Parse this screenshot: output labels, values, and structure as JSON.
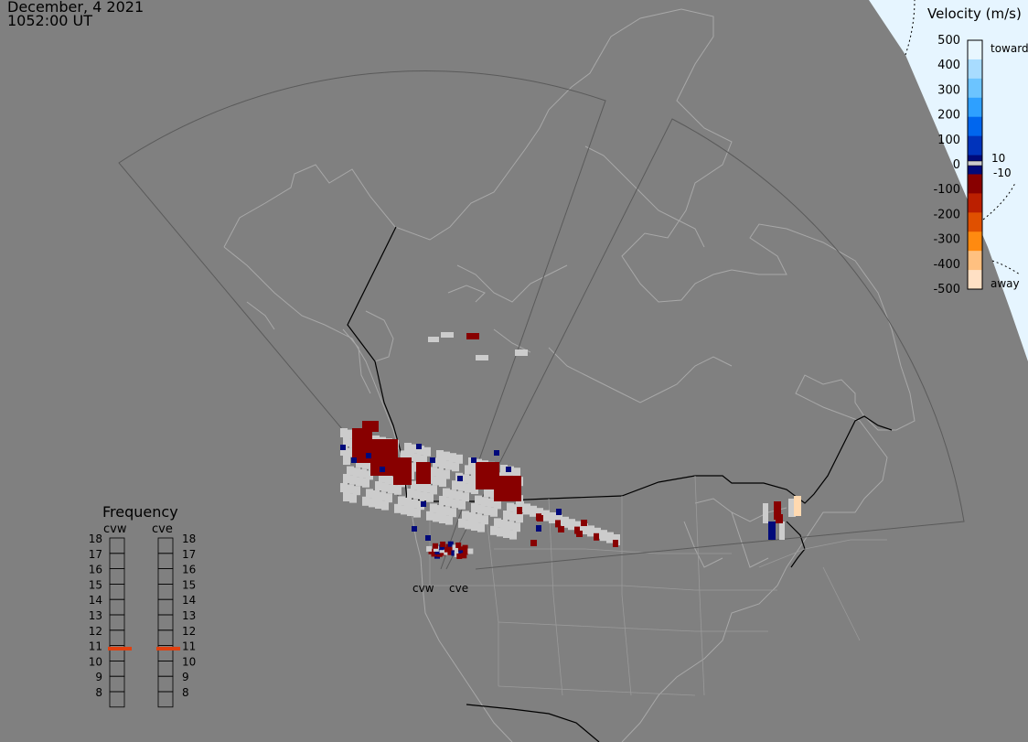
{
  "header": {
    "date": "December, 4 2021",
    "time": "1052:00 UT"
  },
  "colors": {
    "background": "#808080",
    "land_outline": "#a8a8a8",
    "border": "#000000",
    "fov": "#5a5a5a",
    "daylight": "#e6f5ff",
    "ground_scatter": "#cccccc",
    "toward_dark": "#000a7a",
    "away_dark": "#880000",
    "away_light": "#ffd9b0"
  },
  "velocity_scale": {
    "title": "Velocity (m/s)",
    "ticks": [
      "500",
      "400",
      "300",
      "200",
      "100",
      "0",
      "-100",
      "-200",
      "-300",
      "-400",
      "-500"
    ],
    "toward_label": "toward",
    "away_label": "away",
    "inner_positive": "10",
    "inner_negative": "-10",
    "bands": [
      "#e8f6ff",
      "#a8dcff",
      "#6cc4ff",
      "#2ea0ff",
      "#0066ee",
      "#0033bb",
      "#000a7a",
      "#880000",
      "#bb1f00",
      "#e05000",
      "#ff8a10",
      "#ffc080",
      "#ffe0c4"
    ]
  },
  "frequency": {
    "title": "Frequency",
    "radars": [
      "cvw",
      "cve"
    ],
    "levels": [
      "18",
      "17",
      "16",
      "15",
      "14",
      "13",
      "12",
      "11",
      "10",
      "9",
      "8"
    ],
    "current_mhz": {
      "cvw": 10.8,
      "cve": 10.8
    }
  },
  "radars": [
    {
      "code": "cvw"
    },
    {
      "code": "cve"
    }
  ]
}
